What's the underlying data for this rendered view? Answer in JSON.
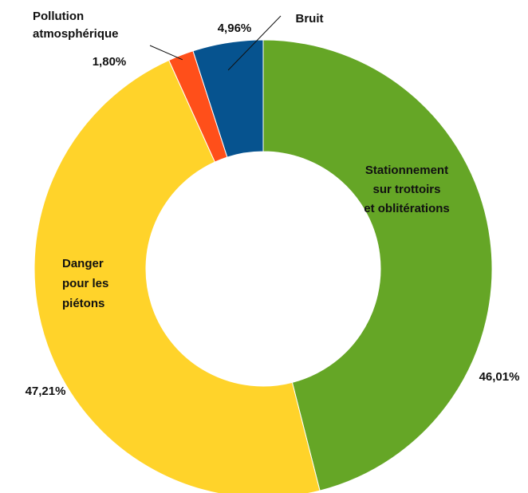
{
  "chart_data": {
    "type": "pie",
    "variant": "donut",
    "start_angle_deg": 0,
    "direction": "clockwise",
    "slices": [
      {
        "label": "Stationnement sur trottoirs et oblitérations",
        "label_lines": [
          "Stationnement",
          "sur trottoirs",
          "et oblitérations"
        ],
        "value": 46.01,
        "value_label": "46,01%",
        "color": "#65A626"
      },
      {
        "label": "Danger pour les piétons",
        "label_lines": [
          "Danger",
          "pour les",
          "piétons"
        ],
        "value": 47.21,
        "value_label": "47,21%",
        "color": "#FFD32A"
      },
      {
        "label": "Pollution atmosphérique",
        "label_lines": [
          "Pollution",
          "atmosphérique"
        ],
        "value": 1.8,
        "value_label": "1,80%",
        "color": "#FF4F1A"
      },
      {
        "label": "Bruit",
        "label_lines": [
          "Bruit"
        ],
        "value": 4.96,
        "value_label": "4,96%",
        "color": "#06538F"
      }
    ]
  }
}
